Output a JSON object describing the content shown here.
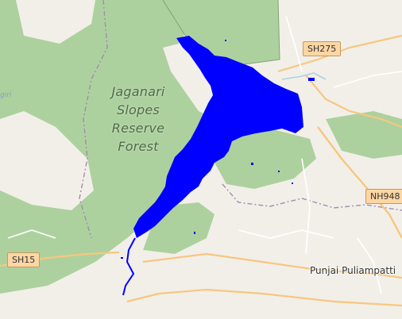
{
  "map": {
    "base_style": "OpenStreetMap standard",
    "colors": {
      "land": "#f2efe9",
      "forest": "#add19e",
      "water_overlay": "#0000ff",
      "road_primary": "#f7c77e",
      "road_minor": "#ffffff",
      "boundary": "#a08cb0"
    }
  },
  "labels": {
    "forest_line1": "Jaganari",
    "forest_line2": "Slopes",
    "forest_line3": "Reserve",
    "forest_line4": "Forest",
    "place_punjai": "Punjai Puliampatti",
    "faint_left": "giri"
  },
  "road_shields": [
    {
      "id": "sh275",
      "label": "SH275"
    },
    {
      "id": "nh948",
      "label": "NH948"
    },
    {
      "id": "sh15",
      "label": "SH15"
    }
  ],
  "overlay": {
    "name": "reservoir-water-extent",
    "color": "#0000ff"
  }
}
